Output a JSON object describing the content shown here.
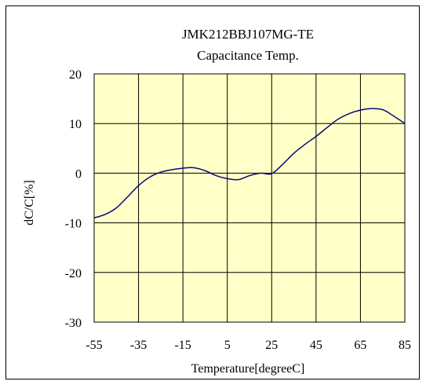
{
  "chart_data": {
    "type": "line",
    "title": "JMK212BBJ107MG-TE",
    "subtitle": "Capacitance Temp.",
    "xlabel": "Temperature[degreeC]",
    "ylabel": "dC/C[%]",
    "xlim": [
      -55,
      85
    ],
    "ylim": [
      -30,
      20
    ],
    "xticks": [
      -55,
      -35,
      -15,
      5,
      25,
      45,
      65,
      85
    ],
    "yticks": [
      20,
      10,
      0,
      -10,
      -20,
      -30
    ],
    "grid": true,
    "colors": {
      "plot_bg": "#ffffc8",
      "line": "#0a0a78",
      "grid": "#000000"
    },
    "series": [
      {
        "x": [
          -55,
          -50,
          -45,
          -40,
          -35,
          -30,
          -25,
          -20,
          -15,
          -10,
          -5,
          0,
          5,
          10,
          15,
          20,
          25,
          30,
          35,
          40,
          45,
          50,
          55,
          60,
          65,
          70,
          75,
          80,
          85
        ],
        "y": [
          -9,
          -8.3,
          -7,
          -4.8,
          -2.5,
          -0.8,
          0.2,
          0.7,
          1.0,
          1.1,
          0.5,
          -0.5,
          -1.1,
          -1.3,
          -0.5,
          0,
          -0.1,
          1.8,
          4.0,
          5.8,
          7.4,
          9.2,
          10.9,
          12.0,
          12.7,
          13.0,
          12.8,
          11.5,
          10
        ]
      }
    ]
  }
}
